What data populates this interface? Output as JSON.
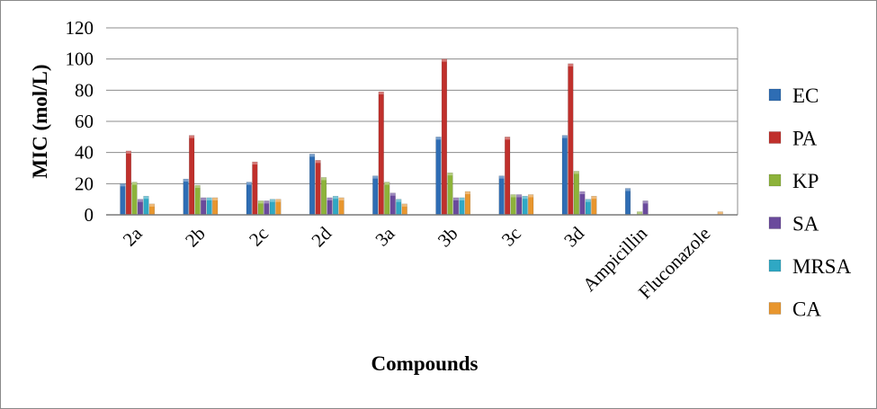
{
  "chart_data": {
    "type": "bar",
    "title": "",
    "xlabel": "Compounds",
    "ylabel": "MIC (mol/L)",
    "ylim": [
      0,
      120
    ],
    "yticks": [
      "0",
      "20",
      "40",
      "60",
      "80",
      "100",
      "120"
    ],
    "grid": true,
    "legend_position": "right",
    "categories": [
      "2a",
      "2b",
      "2c",
      "2d",
      "3a",
      "3b",
      "3c",
      "3d",
      "Ampicillin",
      "Fluconazole"
    ],
    "series": [
      {
        "name": "EC",
        "color": "#2e6db4",
        "values": [
          20,
          23,
          21,
          39,
          25,
          50,
          25,
          51,
          17,
          0
        ]
      },
      {
        "name": "PA",
        "color": "#c0302c",
        "values": [
          41,
          51,
          34,
          35,
          79,
          100,
          50,
          97,
          0,
          0
        ]
      },
      {
        "name": "KP",
        "color": "#8db33a",
        "values": [
          21,
          19,
          9,
          24,
          21,
          27,
          13,
          28,
          2,
          0
        ]
      },
      {
        "name": "SA",
        "color": "#6a4a9c",
        "values": [
          10,
          11,
          9,
          11,
          14,
          11,
          13,
          15,
          9,
          0
        ]
      },
      {
        "name": "MRSA",
        "color": "#2fa8c4",
        "values": [
          12,
          11,
          10,
          12,
          10,
          11,
          12,
          10,
          0,
          0
        ]
      },
      {
        "name": "CA",
        "color": "#e8962e",
        "values": [
          7,
          11,
          10,
          11,
          7,
          15,
          13,
          12,
          0,
          2
        ]
      }
    ]
  }
}
